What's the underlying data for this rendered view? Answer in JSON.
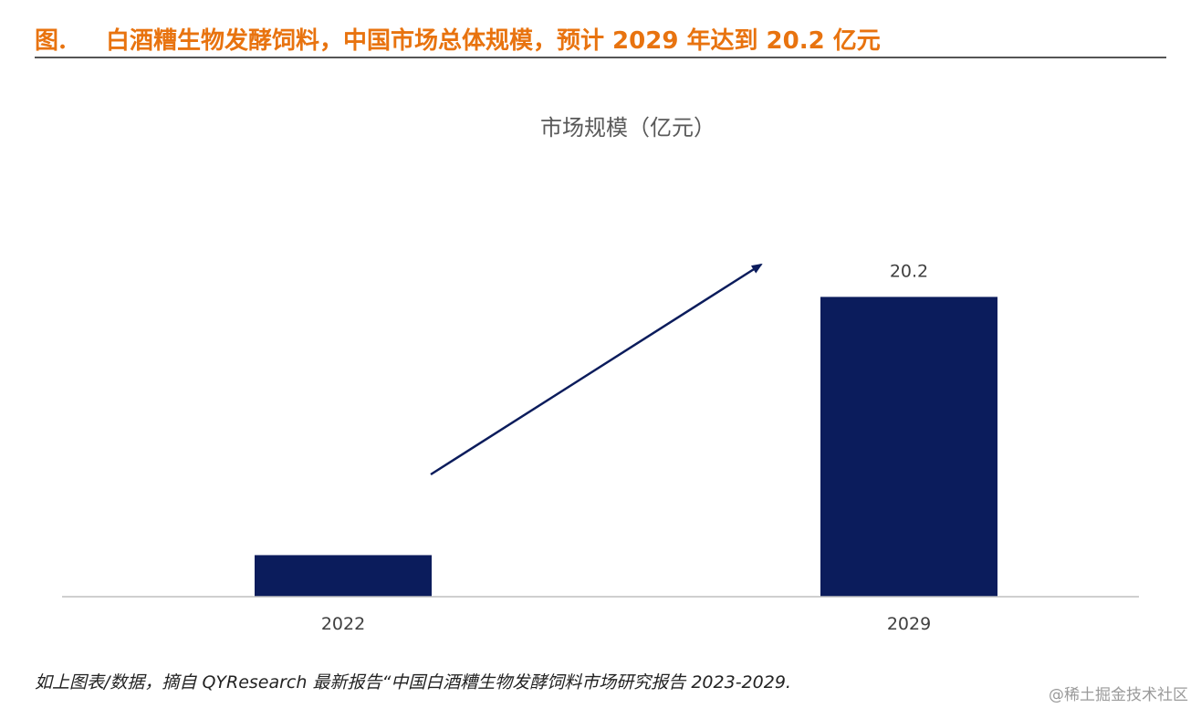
{
  "header": {
    "figure_label": "图.",
    "figure_title": "白酒糟生物发酵饲料，中国市场总体规模，预计 2029 年达到 20.2 亿元"
  },
  "chart_data": {
    "type": "bar",
    "title": "市场规模（亿元）",
    "categories": [
      "2022",
      "2029"
    ],
    "values": [
      2.8,
      20.2
    ],
    "data_labels": [
      "",
      "20.2"
    ],
    "xlabel": "",
    "ylabel": "",
    "ylim": [
      0,
      22.5
    ],
    "grid": false,
    "legend": "none",
    "annotations": [
      "upward-trend-arrow"
    ],
    "bar_color": "#0B1C5C"
  },
  "footer": {
    "source": "如上图表/数据，摘自 QYResearch 最新报告“中国白酒糟生物发酵饲料市场研究报告 2023-2029.",
    "watermark": "@稀土掘金技术社区"
  },
  "colors": {
    "title_orange": "#E8730F",
    "bar_navy": "#0B1C5C",
    "axis_gray": "#BFBFBF",
    "arrow_navy": "#0B1C5C"
  }
}
